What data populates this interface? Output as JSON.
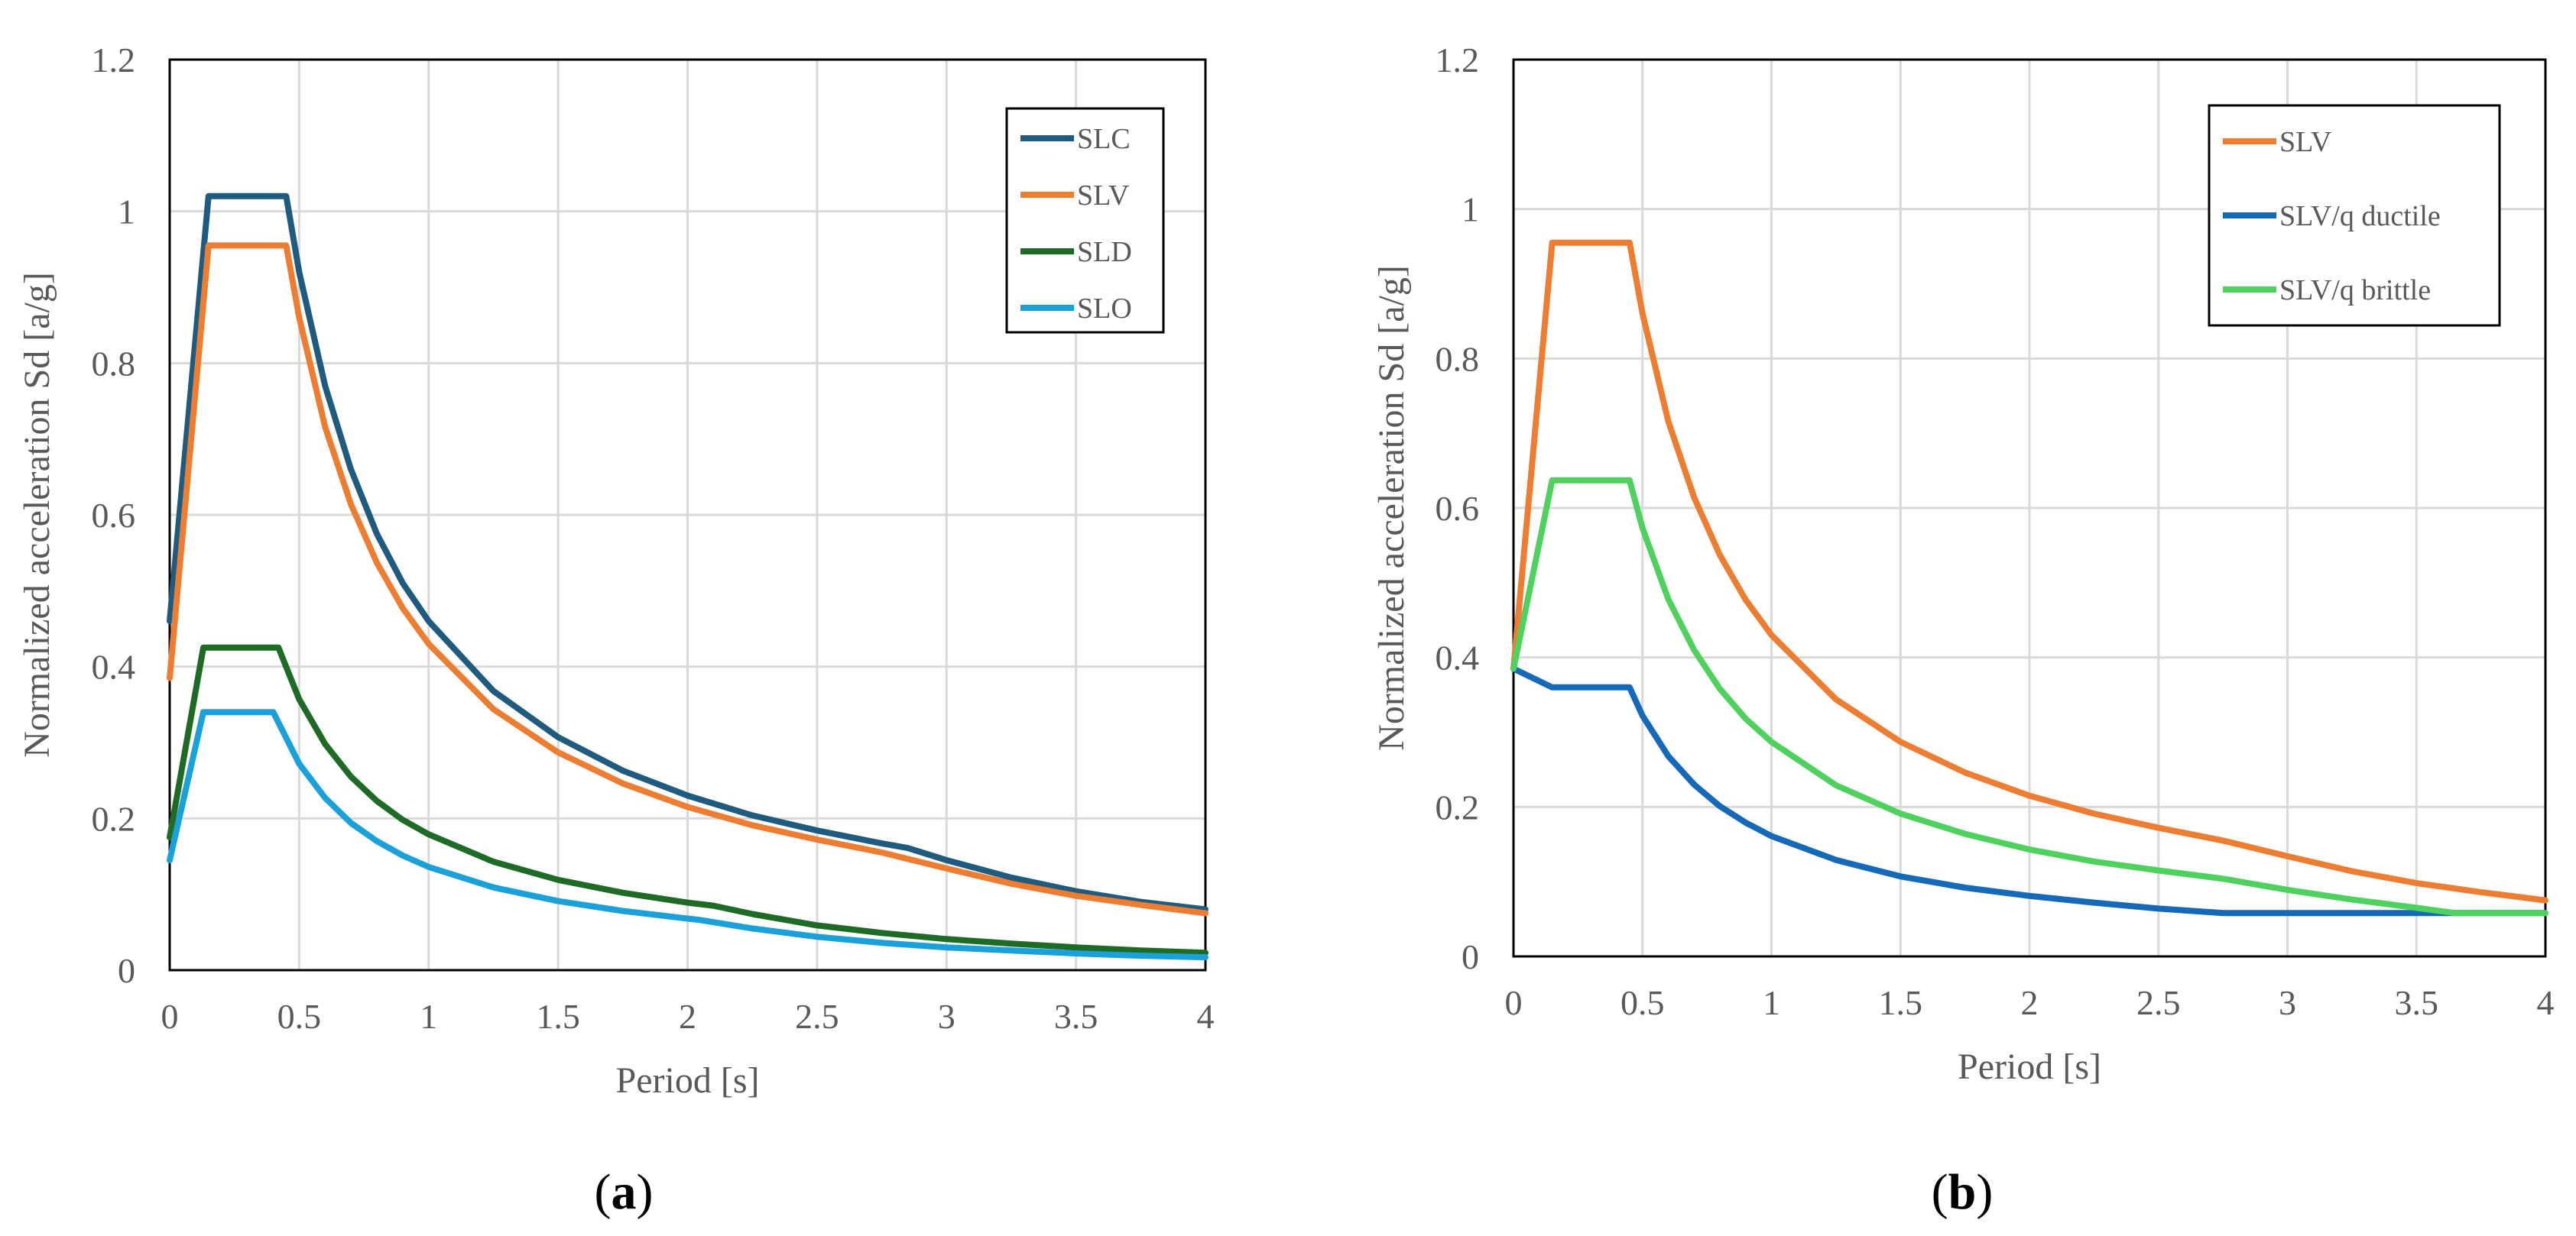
{
  "chart_data": [
    {
      "type": "line",
      "xlabel": "Period [s]",
      "ylabel": "Normalized acceleration Sd [a/g]",
      "xlim": [
        0,
        4
      ],
      "ylim": [
        0,
        1.2
      ],
      "xticks": [
        "0",
        "0.5",
        "1",
        "1.5",
        "2",
        "2.5",
        "3",
        "3.5",
        "4"
      ],
      "yticks": [
        "0",
        "0.2",
        "0.4",
        "0.6",
        "0.8",
        "1",
        "1.2"
      ],
      "grid": true,
      "legend_position": "top-right",
      "caption_letter": "a",
      "series": [
        {
          "name": "SLC",
          "color": "#1f5b7e",
          "x": [
            0,
            0.15,
            0.45,
            0.5,
            0.6,
            0.7,
            0.8,
            0.9,
            1.0,
            1.25,
            1.5,
            1.75,
            2.0,
            2.25,
            2.5,
            2.75,
            2.85,
            3.0,
            3.25,
            3.5,
            3.75,
            4.0
          ],
          "y": [
            0.46,
            1.02,
            1.02,
            0.92,
            0.77,
            0.66,
            0.575,
            0.51,
            0.46,
            0.368,
            0.307,
            0.263,
            0.23,
            0.204,
            0.184,
            0.167,
            0.161,
            0.145,
            0.122,
            0.104,
            0.09,
            0.08
          ]
        },
        {
          "name": "SLV",
          "color": "#ed7d31",
          "x": [
            0,
            0.15,
            0.45,
            0.5,
            0.6,
            0.7,
            0.8,
            0.9,
            1.0,
            1.25,
            1.5,
            1.75,
            2.0,
            2.25,
            2.5,
            2.75,
            3.0,
            3.25,
            3.5,
            3.75,
            4.0
          ],
          "y": [
            0.385,
            0.955,
            0.955,
            0.86,
            0.716,
            0.614,
            0.537,
            0.477,
            0.43,
            0.344,
            0.287,
            0.246,
            0.215,
            0.191,
            0.172,
            0.155,
            0.134,
            0.114,
            0.098,
            0.086,
            0.075
          ]
        },
        {
          "name": "SLD",
          "color": "#1e6b25",
          "x": [
            0,
            0.13,
            0.42,
            0.5,
            0.6,
            0.7,
            0.8,
            0.9,
            1.0,
            1.25,
            1.5,
            1.75,
            2.0,
            2.1,
            2.25,
            2.5,
            2.75,
            3.0,
            3.25,
            3.5,
            3.75,
            4.0
          ],
          "y": [
            0.175,
            0.425,
            0.425,
            0.357,
            0.298,
            0.255,
            0.223,
            0.198,
            0.179,
            0.143,
            0.119,
            0.102,
            0.089,
            0.085,
            0.074,
            0.059,
            0.049,
            0.041,
            0.035,
            0.03,
            0.026,
            0.023
          ]
        },
        {
          "name": "SLO",
          "color": "#1ba1d9",
          "x": [
            0,
            0.13,
            0.4,
            0.5,
            0.6,
            0.7,
            0.8,
            0.9,
            1.0,
            1.25,
            1.5,
            1.75,
            2.0,
            2.05,
            2.25,
            2.5,
            2.75,
            3.0,
            3.25,
            3.5,
            3.75,
            4.0
          ],
          "y": [
            0.145,
            0.34,
            0.34,
            0.272,
            0.227,
            0.194,
            0.17,
            0.151,
            0.136,
            0.109,
            0.091,
            0.078,
            0.068,
            0.066,
            0.055,
            0.044,
            0.036,
            0.03,
            0.026,
            0.022,
            0.019,
            0.017
          ]
        }
      ]
    },
    {
      "type": "line",
      "xlabel": "Period [s]",
      "ylabel": "Normalized acceleration Sd [a/g]",
      "xlim": [
        0,
        4
      ],
      "ylim": [
        0,
        1.2
      ],
      "xticks": [
        "0",
        "0.5",
        "1",
        "1.5",
        "2",
        "2.5",
        "3",
        "3.5",
        "4"
      ],
      "yticks": [
        "0",
        "0.2",
        "0.4",
        "0.6",
        "0.8",
        "1",
        "1.2"
      ],
      "grid": true,
      "legend_position": "top-right",
      "caption_letter": "b",
      "series": [
        {
          "name": "SLV",
          "color": "#ed7d31",
          "x": [
            0,
            0.15,
            0.45,
            0.5,
            0.6,
            0.7,
            0.8,
            0.9,
            1.0,
            1.25,
            1.5,
            1.75,
            2.0,
            2.25,
            2.5,
            2.75,
            3.0,
            3.25,
            3.5,
            3.75,
            4.0
          ],
          "y": [
            0.385,
            0.955,
            0.955,
            0.86,
            0.716,
            0.614,
            0.537,
            0.477,
            0.43,
            0.344,
            0.287,
            0.246,
            0.215,
            0.191,
            0.172,
            0.155,
            0.134,
            0.114,
            0.098,
            0.086,
            0.075
          ]
        },
        {
          "name": "SLV/q ductile",
          "color": "#1469b8",
          "x": [
            0,
            0.15,
            0.45,
            0.5,
            0.6,
            0.7,
            0.8,
            0.9,
            1.0,
            1.25,
            1.5,
            1.75,
            2.0,
            2.25,
            2.5,
            2.75,
            3.0,
            3.25,
            3.5,
            3.75,
            4.0
          ],
          "y": [
            0.385,
            0.36,
            0.36,
            0.322,
            0.268,
            0.23,
            0.201,
            0.179,
            0.161,
            0.129,
            0.107,
            0.092,
            0.081,
            0.072,
            0.064,
            0.058,
            0.058,
            0.058,
            0.058,
            0.058,
            0.058
          ]
        },
        {
          "name": "SLV/q brittle",
          "color": "#4fd15e",
          "x": [
            0,
            0.15,
            0.45,
            0.5,
            0.6,
            0.7,
            0.8,
            0.9,
            1.0,
            1.25,
            1.5,
            1.75,
            2.0,
            2.25,
            2.5,
            2.75,
            3.0,
            3.25,
            3.5,
            3.65,
            3.75,
            4.0
          ],
          "y": [
            0.385,
            0.637,
            0.637,
            0.573,
            0.478,
            0.41,
            0.358,
            0.318,
            0.287,
            0.229,
            0.191,
            0.164,
            0.143,
            0.127,
            0.115,
            0.104,
            0.089,
            0.076,
            0.065,
            0.058,
            0.058,
            0.058
          ]
        }
      ]
    }
  ]
}
